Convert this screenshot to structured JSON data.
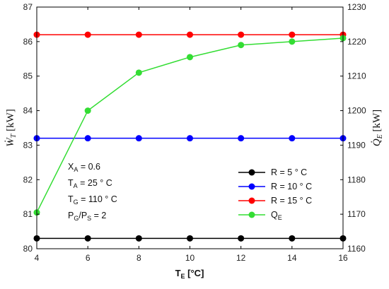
{
  "chart_data": {
    "type": "line",
    "x": [
      4,
      6,
      8,
      10,
      12,
      14,
      16
    ],
    "xlabel_main": "T",
    "xlabel_sub": "E",
    "xlabel_unit": " [°C]",
    "xlim": [
      4,
      16
    ],
    "xticks": [
      "4",
      "6",
      "8",
      "10",
      "12",
      "14",
      "16"
    ],
    "ylabel_left_main": "Ẇ",
    "ylabel_left_sub": "T",
    "ylabel_left_unit": " [kW]",
    "ylim_left": [
      80,
      87
    ],
    "yticks_left": [
      "80",
      "81",
      "82",
      "83",
      "84",
      "85",
      "86",
      "87"
    ],
    "ylabel_right_main": "Q̇",
    "ylabel_right_sub": "E",
    "ylabel_right_unit": " [kW]",
    "ylim_right": [
      1160,
      1230
    ],
    "yticks_right": [
      "1160",
      "1170",
      "1180",
      "1190",
      "1200",
      "1210",
      "1220",
      "1230"
    ],
    "grid": false,
    "legend_position": "lower-right",
    "series": [
      {
        "name": "R = 5 ° C",
        "axis": "left",
        "color": "#000000",
        "values": [
          80.3,
          80.3,
          80.3,
          80.3,
          80.3,
          80.3,
          80.3
        ]
      },
      {
        "name": "R = 10 ° C",
        "axis": "left",
        "color": "#0000ff",
        "values": [
          83.2,
          83.2,
          83.2,
          83.2,
          83.2,
          83.2,
          83.2
        ]
      },
      {
        "name": "R = 15 ° C",
        "axis": "left",
        "color": "#ff0000",
        "values": [
          86.2,
          86.2,
          86.2,
          86.2,
          86.2,
          86.2,
          86.2
        ]
      },
      {
        "name": "Q",
        "name_sub": "E",
        "axis": "right",
        "color": "#33dd33",
        "values": [
          1170.5,
          1200,
          1211,
          1215.5,
          1219,
          1220,
          1221
        ]
      }
    ],
    "annotations": [
      {
        "main": "X",
        "sub": "A",
        "rest": " = 0.6"
      },
      {
        "main": "T",
        "sub": "A",
        "rest": " = 25 ° C"
      },
      {
        "main": "T",
        "sub": "G",
        "rest": " = 110 ° C"
      },
      {
        "main": "P",
        "sub": "G",
        "rest": "/P",
        "sub2": "S",
        "rest2": " = 2"
      }
    ]
  }
}
